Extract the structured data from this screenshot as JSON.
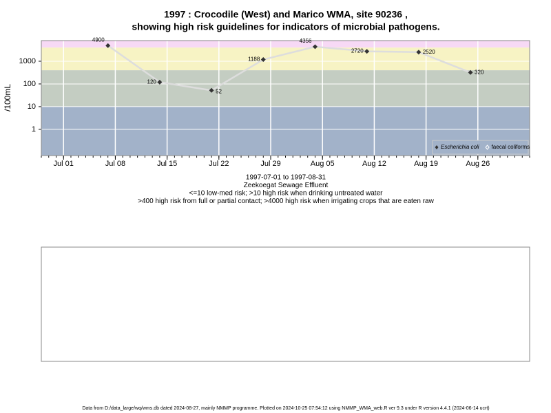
{
  "chart_data": {
    "type": "line",
    "title": "1997 : Crocodile (West) and Marico WMA, site 90236 ,",
    "title_line2": "showing high risk guidelines for indicators of microbial pathogens.",
    "subtitle_lines": [
      "1997-07-01 to 1997-08-31",
      "Zeekoegat Sewage Effluent",
      "<=10 low-med risk; >10 high risk when drinking untreated water",
      ">400 high risk from full or partial contact; >4000 high risk when irrigating crops that are eaten raw"
    ],
    "y_label": "/100mL",
    "log_y": true,
    "ylim": [
      0.07,
      8100
    ],
    "yticks": [
      1,
      10,
      100,
      1000
    ],
    "xlim": [
      "Jun 28",
      "Sep 02"
    ],
    "xticks": [
      "Jul 01",
      "Jul 08",
      "Jul 15",
      "Jul 22",
      "Jul 29",
      "Aug 05",
      "Aug 12",
      "Aug 19",
      "Aug 26"
    ],
    "x": [
      "Jul 07",
      "Jul 14",
      "Jul 21",
      "Jul 28",
      "Aug 04",
      "Aug 11",
      "Aug 18",
      "Aug 25"
    ],
    "bands": [
      {
        "from": 4000,
        "to": 8100,
        "color": "#f7d9f5"
      },
      {
        "from": 400,
        "to": 4000,
        "color": "#f7f3c4"
      },
      {
        "from": 10,
        "to": 400,
        "color": "#c4cdc2"
      },
      {
        "from": 0.07,
        "to": 10,
        "color": "#a2b2c9"
      }
    ],
    "series": [
      {
        "name": "Escherichia coli",
        "color": "#333333",
        "values": [
          4900,
          120,
          52,
          1188,
          4356,
          2720,
          2520,
          320
        ]
      },
      {
        "name": "faecal coliforms",
        "color": "#666666",
        "values": [
          null,
          null,
          null,
          null,
          null,
          null,
          null,
          null
        ]
      }
    ],
    "legend": "bottom-right",
    "footer": "Data from D:/data_large/wq/wms.db dated 2024-08-27, mainly NMMP programme. Plotted on 2024-10-25 07:54:12 using NMMP_WMA_web.R ver 9.3 under R version 4.4.1 (2024-06-14 ucrt)"
  }
}
